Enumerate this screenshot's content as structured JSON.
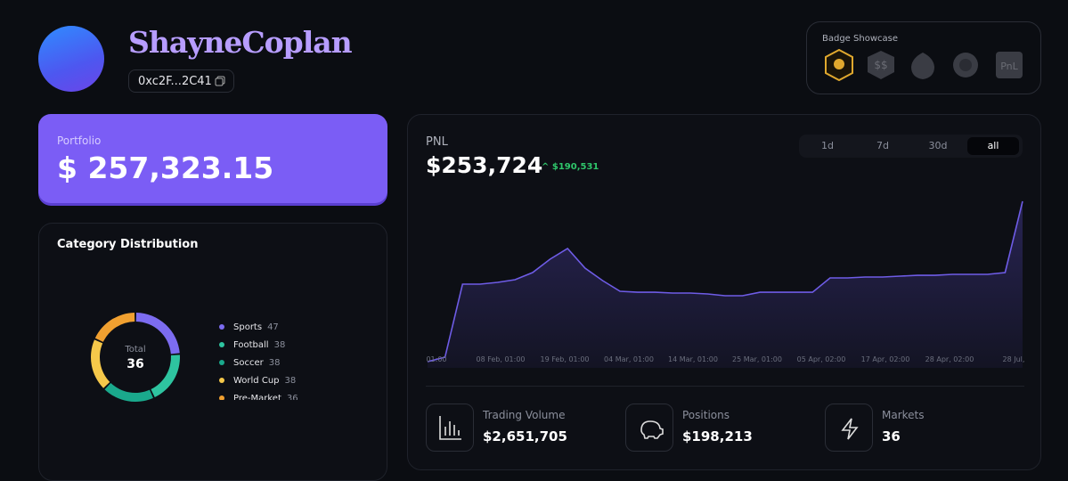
{
  "profile": {
    "username": "ShayneCoplan",
    "address": "0xc2F...2C41"
  },
  "badges": {
    "title": "Badge Showcase"
  },
  "portfolio": {
    "label": "Portfolio",
    "value": "$ 257,323.15"
  },
  "category": {
    "title": "Category Distribution",
    "total_label": "Total",
    "total": 36,
    "items": [
      {
        "name": "Sports",
        "value": 47,
        "color": "#7c6cf0"
      },
      {
        "name": "Football",
        "value": 38,
        "color": "#2ec4a0"
      },
      {
        "name": "Soccer",
        "value": 38,
        "color": "#1aa98c"
      },
      {
        "name": "World Cup",
        "value": 38,
        "color": "#f5c84a"
      },
      {
        "name": "Pre-Market",
        "value": 36,
        "color": "#f0a030"
      }
    ]
  },
  "pnl": {
    "label": "PNL",
    "value": "$253,724",
    "change": "$190,531",
    "ranges": [
      "1d",
      "7d",
      "30d",
      "all"
    ],
    "active_range": "all"
  },
  "chart_data": {
    "type": "area",
    "color": "#6e5ce6",
    "values": [
      63193,
      68500,
      155300,
      155300,
      157400,
      160600,
      169000,
      184900,
      197600,
      174300,
      159500,
      146800,
      145700,
      145700,
      144700,
      144700,
      143600,
      141500,
      141500,
      145700,
      145700,
      145700,
      145700,
      162700,
      162700,
      163700,
      163700,
      164800,
      165800,
      165800,
      166900,
      166900,
      166900,
      169000,
      253724
    ],
    "x_tick_labels": [
      "01:00",
      "08 Feb, 01:00",
      "19 Feb, 01:00",
      "04 Mar, 01:00",
      "14 Mar, 01:00",
      "25 Mar, 01:00",
      "05 Apr, 02:00",
      "17 Apr, 02:00",
      "28 Apr, 02:00",
      "28 Jul,"
    ]
  },
  "stats": [
    {
      "label": "Trading Volume",
      "value": "$2,651,705"
    },
    {
      "label": "Positions",
      "value": "$198,213"
    },
    {
      "label": "Markets",
      "value": "36"
    }
  ]
}
